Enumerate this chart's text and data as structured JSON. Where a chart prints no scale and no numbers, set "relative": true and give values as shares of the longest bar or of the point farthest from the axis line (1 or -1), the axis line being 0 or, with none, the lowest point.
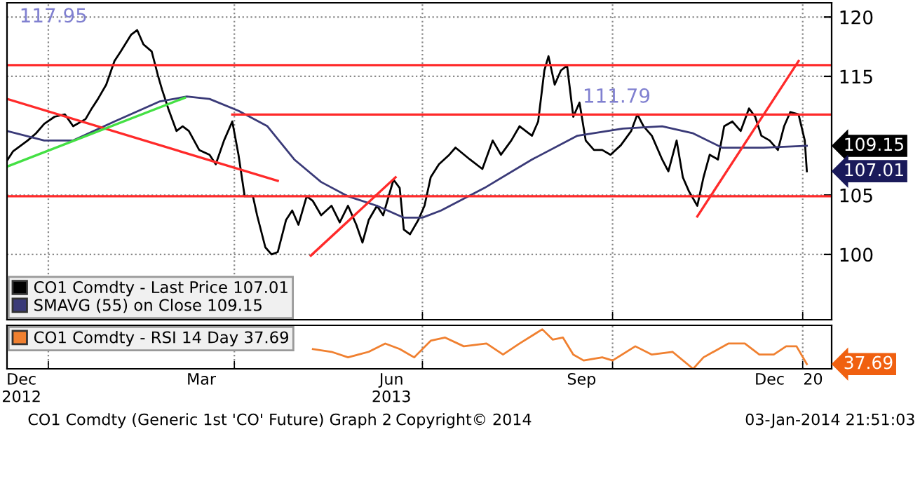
{
  "chart_data": [
    {
      "type": "line",
      "xlim": [
        "2012-12-12",
        "2014-01-15"
      ],
      "ylim": [
        94.5,
        121.2
      ],
      "yticks": [
        100,
        105,
        115,
        120
      ],
      "xticks": [
        {
          "value": "2013-01-01",
          "label": null
        },
        {
          "value": "2013-04-01",
          "label": null
        },
        {
          "value": "2013-07-01",
          "label": null
        },
        {
          "value": "2013-10-01",
          "label": null
        },
        {
          "value": "2014-01-01",
          "label": null
        }
      ],
      "tick_labels": "y",
      "grid": true,
      "legend": "bottom left",
      "series": [
        {
          "name": "CO1 Comdty - Last Price 107.01",
          "color": "#000000",
          "x": [
            "2012-12-12",
            "2012-12-15",
            "2012-12-22",
            "2012-12-26",
            "2012-12-30",
            "2013-01-04",
            "2013-01-09",
            "2013-01-13",
            "2013-01-19",
            "2013-01-22",
            "2013-01-25",
            "2013-01-29",
            "2013-02-02",
            "2013-02-05",
            "2013-02-10",
            "2013-02-13",
            "2013-02-16",
            "2013-02-20",
            "2013-02-23",
            "2013-02-25",
            "2013-02-28",
            "2013-03-04",
            "2013-03-07",
            "2013-03-10",
            "2013-03-15",
            "2013-03-20",
            "2013-03-23",
            "2013-03-27",
            "2013-03-31",
            "2013-04-03",
            "2013-04-06",
            "2013-04-10",
            "2013-04-12",
            "2013-04-16",
            "2013-04-19",
            "2013-04-22",
            "2013-04-26",
            "2013-04-29",
            "2013-05-02",
            "2013-05-06",
            "2013-05-09",
            "2013-05-13",
            "2013-05-18",
            "2013-05-22",
            "2013-05-26",
            "2013-05-30",
            "2013-06-02",
            "2013-06-05",
            "2013-06-09",
            "2013-06-12",
            "2013-06-17",
            "2013-06-20",
            "2013-06-22",
            "2013-06-25",
            "2013-06-29",
            "2013-07-02",
            "2013-07-05",
            "2013-07-09",
            "2013-07-14",
            "2013-07-17",
            "2013-07-24",
            "2013-07-30",
            "2013-08-04",
            "2013-08-08",
            "2013-08-13",
            "2013-08-17",
            "2013-08-23",
            "2013-08-26",
            "2013-08-29",
            "2013-08-31",
            "2013-09-03",
            "2013-09-06",
            "2013-09-09",
            "2013-09-12",
            "2013-09-15",
            "2013-09-18",
            "2013-09-22",
            "2013-09-26",
            "2013-09-30",
            "2013-10-05",
            "2013-10-10",
            "2013-10-13",
            "2013-10-16",
            "2013-10-20",
            "2013-10-25",
            "2013-10-28",
            "2013-11-01",
            "2013-11-04",
            "2013-11-07",
            "2013-11-11",
            "2013-11-14",
            "2013-11-17",
            "2013-11-21",
            "2013-11-24",
            "2013-11-28",
            "2013-12-02",
            "2013-12-06",
            "2013-12-09",
            "2013-12-12",
            "2013-12-16",
            "2013-12-20",
            "2013-12-23",
            "2013-12-26",
            "2013-12-30",
            "2014-01-02",
            "2014-01-03"
          ],
          "values": [
            107.9,
            108.7,
            109.6,
            110.2,
            111.0,
            111.6,
            111.8,
            110.8,
            111.4,
            112.3,
            113.1,
            114.3,
            116.3,
            117.1,
            118.5,
            118.9,
            117.7,
            117.1,
            115.1,
            113.9,
            112.3,
            110.4,
            110.8,
            110.4,
            108.8,
            108.4,
            107.6,
            109.6,
            111.2,
            108.4,
            104.9,
            104.9,
            103.3,
            100.6,
            100.0,
            100.2,
            102.9,
            103.7,
            102.5,
            104.9,
            104.5,
            103.3,
            104.1,
            102.7,
            104.1,
            102.5,
            101.0,
            102.9,
            104.1,
            103.3,
            106.3,
            105.6,
            102.1,
            101.7,
            102.9,
            104.1,
            106.5,
            107.6,
            108.4,
            109.0,
            108.0,
            107.2,
            109.6,
            108.4,
            109.6,
            110.8,
            110.0,
            111.2,
            115.5,
            116.7,
            114.3,
            115.5,
            115.9,
            111.6,
            112.8,
            109.6,
            108.8,
            108.8,
            108.4,
            109.2,
            110.4,
            111.8,
            110.8,
            110.0,
            108.0,
            107.0,
            109.6,
            106.5,
            105.3,
            104.1,
            106.5,
            108.4,
            108.0,
            110.8,
            111.2,
            110.4,
            112.3,
            111.6,
            110.0,
            109.6,
            108.8,
            110.8,
            112.0,
            111.8,
            109.6,
            107.01
          ]
        },
        {
          "name": "SMAVG (55) on Close 109.15",
          "color": "#3a3a78",
          "x": [
            "2012-12-12",
            "2012-12-30",
            "2013-01-13",
            "2013-02-02",
            "2013-02-24",
            "2013-03-09",
            "2013-03-20",
            "2013-04-03",
            "2013-04-17",
            "2013-04-30",
            "2013-05-13",
            "2013-05-26",
            "2013-06-09",
            "2013-06-22",
            "2013-07-01",
            "2013-07-10",
            "2013-07-31",
            "2013-08-23",
            "2013-09-14",
            "2013-10-06",
            "2013-10-25",
            "2013-11-09",
            "2013-11-23",
            "2013-12-13",
            "2014-01-03"
          ],
          "values": [
            110.4,
            109.6,
            109.6,
            111.2,
            112.9,
            113.3,
            113.1,
            112.1,
            110.8,
            108.0,
            106.1,
            104.9,
            104.1,
            103.1,
            103.1,
            103.7,
            105.6,
            108.0,
            110.0,
            110.6,
            110.8,
            110.2,
            109.0,
            109.0,
            109.15
          ]
        },
        {
          "color": "#ff2a2a",
          "x": [
            "2012-12-12",
            "2013-04-22"
          ],
          "values": [
            113.1,
            106.2
          ]
        },
        {
          "color": "#44e044",
          "x": [
            "2012-12-12",
            "2013-03-08"
          ],
          "values": [
            107.4,
            113.2
          ]
        },
        {
          "color": "#ff2a2a",
          "x": [
            "2013-05-08",
            "2013-06-18"
          ],
          "values": [
            99.9,
            106.5
          ]
        },
        {
          "color": "#ff2a2a",
          "x": [
            "2013-11-11",
            "2013-12-30"
          ],
          "values": [
            103.2,
            116.3
          ]
        },
        {
          "color": "#ff2a2a",
          "x": [
            "2013-03-31",
            "2014-01-15"
          ],
          "values": [
            111.79,
            111.79
          ]
        }
      ],
      "ref_lines": [
        {
          "axis": "y",
          "value": 115.95,
          "color": "#ff2a2a"
        },
        {
          "axis": "y",
          "value": 104.9,
          "color": "#ff2a2a"
        }
      ],
      "annotations": [
        "117.95",
        {
          "text": "111.79",
          "x": "2013-10-03",
          "y": 111.79
        },
        {
          "text": "109.15",
          "x": "2014-01-03",
          "y": 109.15
        },
        {
          "text": "107.01",
          "x": "2014-01-03",
          "y": 107.01
        }
      ]
    },
    {
      "type": "line",
      "relative": true,
      "xlim": [
        "2012-12-12",
        "2014-01-15"
      ],
      "xticks": [
        {
          "value": "2013-01-01",
          "label": null
        },
        {
          "value": "2013-04-01",
          "label": null
        },
        {
          "value": "2013-07-01",
          "label": null
        },
        {
          "value": "2013-10-01",
          "label": null
        },
        {
          "value": "2014-01-01",
          "label": null
        },
        {
          "value": "2012-12-19",
          "label": "Dec\n2012"
        },
        {
          "value": "2013-03-16",
          "label": "Mar"
        },
        {
          "value": "2013-06-16",
          "label": "Jun\n2013"
        },
        {
          "value": "2013-09-16",
          "label": "Sep"
        },
        {
          "value": "2013-12-16",
          "label": "Dec"
        },
        {
          "value": "2014-01-06",
          "label": "20"
        }
      ],
      "tick_labels": "x",
      "grid": "x",
      "legend": "top left",
      "series": [
        {
          "name": "CO1 Comdty - RSI 14 Day 37.69",
          "color": "#f08030",
          "x": [
            "2013-05-09",
            "2013-05-18",
            "2013-05-26",
            "2013-06-05",
            "2013-06-13",
            "2013-06-20",
            "2013-06-27",
            "2013-07-05",
            "2013-07-12",
            "2013-07-21",
            "2013-08-01",
            "2013-08-09",
            "2013-08-17",
            "2013-08-28",
            "2013-09-02",
            "2013-09-07",
            "2013-09-12",
            "2013-09-17",
            "2013-09-26",
            "2013-10-01",
            "2013-10-12",
            "2013-10-20",
            "2013-10-30",
            "2013-11-09",
            "2013-11-14",
            "2013-11-26",
            "2013-12-04",
            "2013-12-11",
            "2013-12-18",
            "2013-12-24",
            "2013-12-29",
            "2014-01-03"
          ],
          "values": [
            0.5,
            0.43,
            0.29,
            0.43,
            0.64,
            0.5,
            0.29,
            0.71,
            0.79,
            0.57,
            0.64,
            0.36,
            0.64,
            1.0,
            0.74,
            0.79,
            0.36,
            0.21,
            0.29,
            0.21,
            0.57,
            0.36,
            0.43,
            0,
            0.29,
            0.64,
            0.64,
            0.36,
            0.36,
            0.57,
            0.57,
            0.12
          ]
        }
      ],
      "annotations": [
        {
          "text": "37.69",
          "x": "2014-01-03",
          "y": 0.12
        },
        "CO1 Comdty (Generic 1st 'CO' Future) Graph 2",
        "Copyright© 2014",
        "03-Jan-2014 21:51:03"
      ]
    }
  ]
}
